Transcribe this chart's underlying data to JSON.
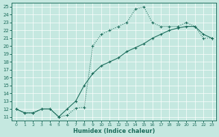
{
  "xlabel": "Humidex (Indice chaleur)",
  "xlim": [
    -0.5,
    23.5
  ],
  "ylim": [
    10.5,
    25.5
  ],
  "yticks": [
    11,
    12,
    13,
    14,
    15,
    16,
    17,
    18,
    19,
    20,
    21,
    22,
    23,
    24,
    25
  ],
  "xticks": [
    0,
    1,
    2,
    3,
    4,
    5,
    6,
    7,
    8,
    9,
    10,
    11,
    12,
    13,
    14,
    15,
    16,
    17,
    18,
    19,
    20,
    21,
    22,
    23
  ],
  "bg_color": "#c5e8e0",
  "grid_color": "#ffffff",
  "line_color": "#1a6b5a",
  "line1_x": [
    0,
    1,
    2,
    3,
    4,
    5,
    6,
    7,
    8,
    9,
    10,
    11,
    12,
    13,
    14,
    15,
    16,
    17,
    18,
    19,
    20,
    21,
    22,
    23
  ],
  "line1_y": [
    12,
    11.5,
    11.5,
    12,
    12,
    11,
    11.2,
    12.1,
    12.2,
    20,
    21.5,
    22,
    22.5,
    23,
    24.7,
    25,
    23,
    22.5,
    22.5,
    22.5,
    23,
    22.5,
    21,
    21
  ],
  "line2_x": [
    0,
    1,
    2,
    3,
    4,
    5,
    6,
    7,
    8,
    9,
    10,
    11,
    12,
    13,
    14,
    15,
    16,
    17,
    18,
    19,
    20,
    21,
    22,
    23
  ],
  "line2_y": [
    12,
    11.5,
    11.5,
    12,
    12,
    11,
    12,
    13,
    15,
    16.5,
    17.5,
    18,
    18.5,
    19.3,
    19.8,
    20.3,
    21,
    21.5,
    22,
    22.3,
    22.5,
    22.5,
    21.5,
    21
  ]
}
